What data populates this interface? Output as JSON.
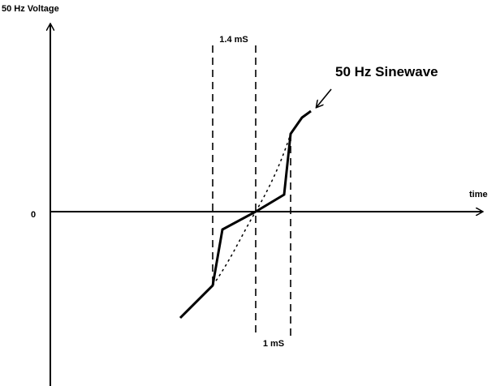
{
  "labels": {
    "y_axis": "50 Hz Voltage",
    "x_axis": "time",
    "origin": "0",
    "top_interval": "1.4 mS",
    "bottom_interval": "1 mS",
    "curve": "50 Hz Sinewave"
  }
}
